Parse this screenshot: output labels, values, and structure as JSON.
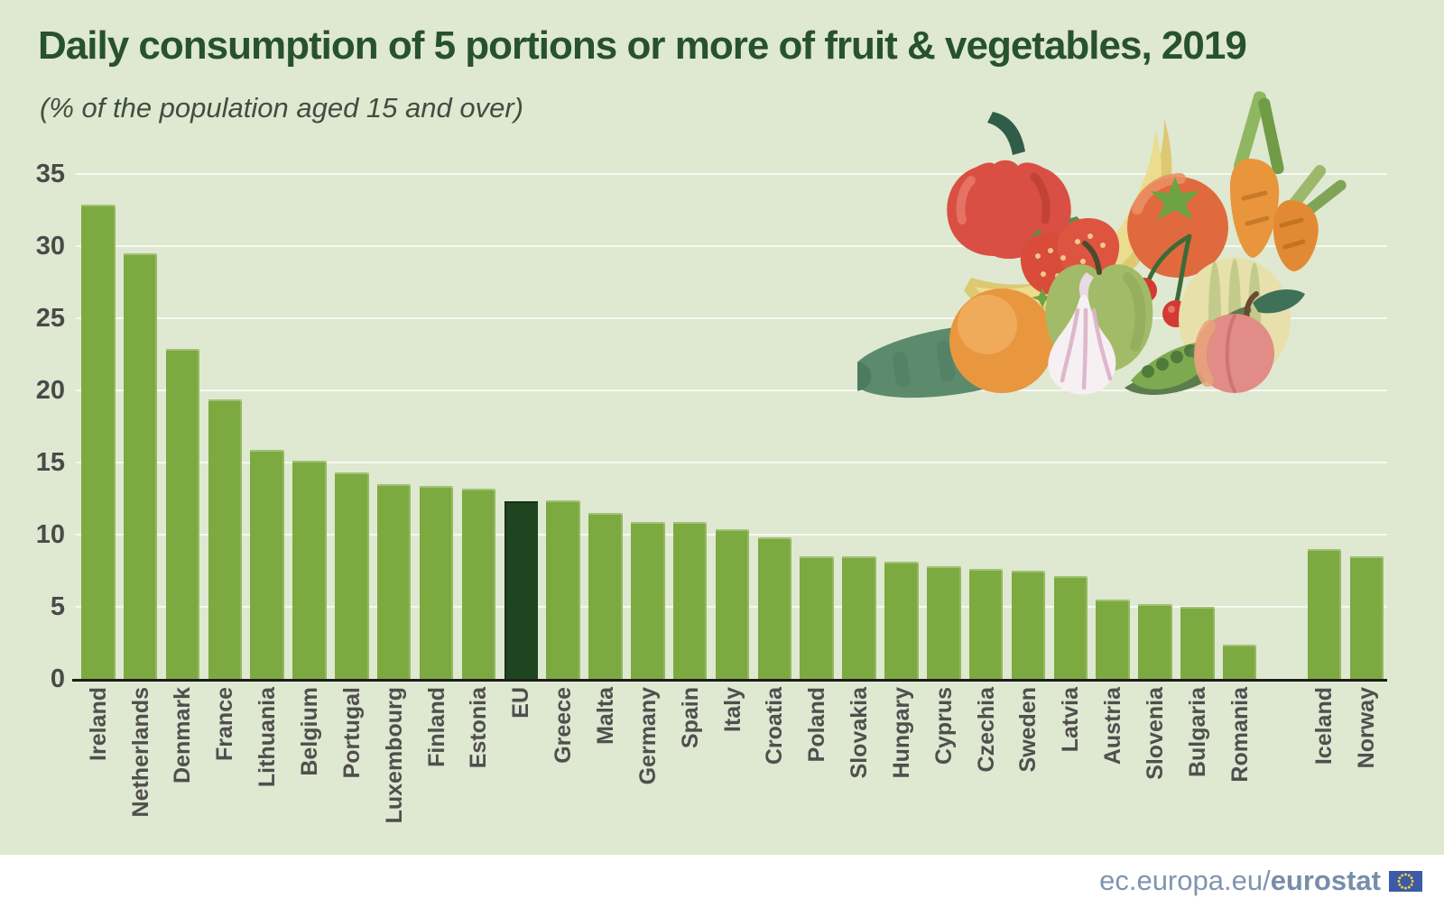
{
  "header": {
    "title": "Daily consumption of 5 portions or more of fruit & vegetables, 2019",
    "subtitle": "(% of the population aged 15 and over)"
  },
  "chart_data": {
    "type": "bar",
    "title": "Daily consumption of 5 portions or more of fruit & vegetables, 2019",
    "subtitle": "(% of the population aged 15 and over)",
    "ylabel": "% of the population aged 15 and over",
    "ylim": [
      0,
      35
    ],
    "yticks": [
      0,
      5,
      10,
      15,
      20,
      25,
      30,
      35
    ],
    "grid": true,
    "legend": null,
    "bars": [
      {
        "label": "Ireland",
        "value": 32.9
      },
      {
        "label": "Netherlands",
        "value": 29.5
      },
      {
        "label": "Denmark",
        "value": 22.9
      },
      {
        "label": "France",
        "value": 19.4
      },
      {
        "label": "Lithuania",
        "value": 15.9
      },
      {
        "label": "Belgium",
        "value": 15.1
      },
      {
        "label": "Portugal",
        "value": 14.3
      },
      {
        "label": "Luxembourg",
        "value": 13.5
      },
      {
        "label": "Finland",
        "value": 13.4
      },
      {
        "label": "Estonia",
        "value": 13.2
      },
      {
        "label": "EU",
        "value": 12.3,
        "highlight": true
      },
      {
        "label": "Greece",
        "value": 12.4
      },
      {
        "label": "Malta",
        "value": 11.5
      },
      {
        "label": "Germany",
        "value": 10.9
      },
      {
        "label": "Spain",
        "value": 10.9
      },
      {
        "label": "Italy",
        "value": 10.4
      },
      {
        "label": "Croatia",
        "value": 9.8
      },
      {
        "label": "Poland",
        "value": 8.5
      },
      {
        "label": "Slovakia",
        "value": 8.5
      },
      {
        "label": "Hungary",
        "value": 8.1
      },
      {
        "label": "Cyprus",
        "value": 7.8
      },
      {
        "label": "Czechia",
        "value": 7.6
      },
      {
        "label": "Sweden",
        "value": 7.5
      },
      {
        "label": "Latvia",
        "value": 7.1
      },
      {
        "label": "Austria",
        "value": 5.5
      },
      {
        "label": "Slovenia",
        "value": 5.2
      },
      {
        "label": "Bulgaria",
        "value": 5.0
      },
      {
        "label": "Romania",
        "value": 2.4
      },
      {
        "label": "Iceland",
        "value": 9.0,
        "gap_before": true
      },
      {
        "label": "Norway",
        "value": 8.5
      }
    ],
    "colors": {
      "bar": "#7caa40",
      "eu_bar": "#1f4520",
      "background": "#dfe8d0",
      "gridline": "#f2f6e8",
      "axis_line": "#1c1c1c",
      "tick_label": "#4a4a4a",
      "title": "#27522e"
    }
  },
  "illustration": {
    "name": "fruit-and-vegetables-illustration",
    "items": [
      "bananas",
      "red-pepper",
      "tomato",
      "carrots",
      "strawberries",
      "green-apple",
      "cherries",
      "orange",
      "melon",
      "peach",
      "garlic",
      "cucumber",
      "pea-pods"
    ]
  },
  "footer": {
    "link_regular": "ec.europa.eu/",
    "link_bold": "eurostat",
    "flag": "eu-flag"
  }
}
